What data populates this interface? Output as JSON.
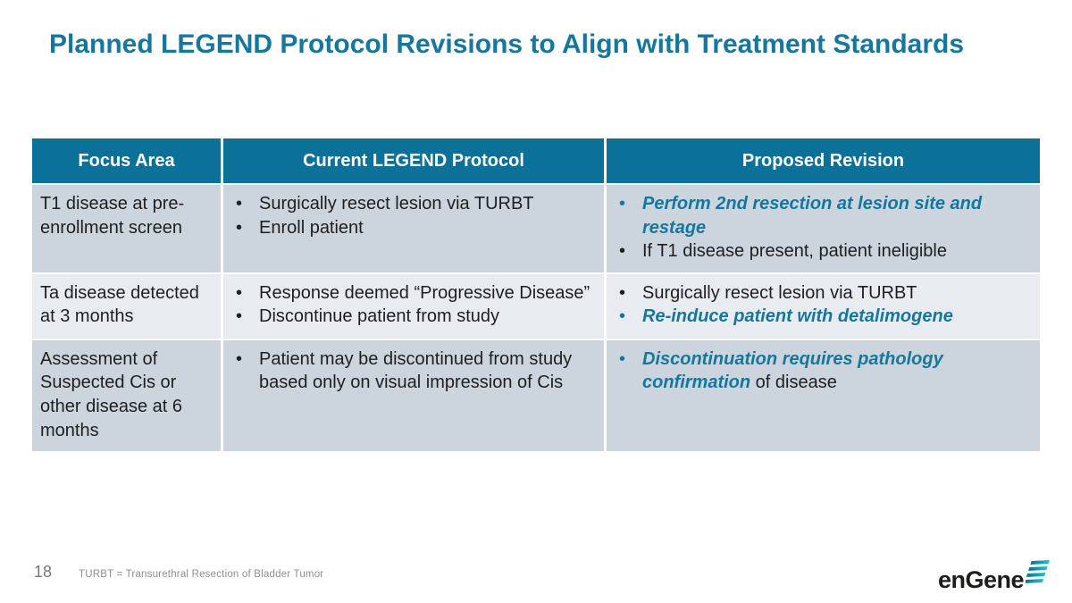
{
  "slide": {
    "title": "Planned LEGEND Protocol Revisions to Align with Treatment Standards",
    "page_number": "18",
    "footnote": "TURBT = Transurethral Resection of Bladder Tumor",
    "logo_text": "enGene"
  },
  "colors": {
    "accent_teal": "#15779e",
    "header_bg": "#0c7199",
    "row_dark": "#ccd4dd",
    "row_light": "#e8ecf1",
    "text_dark": "#1f1f1f",
    "logo_icon_teal_dark": "#0e7488",
    "logo_icon_teal_bright": "#1fc1d3"
  },
  "table": {
    "headers": [
      "Focus Area",
      "Current LEGEND Protocol",
      "Proposed Revision"
    ],
    "rows": [
      {
        "focus_area": "T1 disease at pre-enrollment screen",
        "current": [
          {
            "segments": [
              {
                "text": "Surgically resect lesion via TURBT",
                "em": false
              }
            ]
          },
          {
            "segments": [
              {
                "text": "Enroll patient",
                "em": false
              }
            ]
          }
        ],
        "proposed": [
          {
            "segments": [
              {
                "text": "Perform 2nd resection at lesion site and restage",
                "em": true
              }
            ]
          },
          {
            "segments": [
              {
                "text": "If T1 disease present, patient ineligible",
                "em": false
              }
            ]
          }
        ]
      },
      {
        "focus_area": "Ta disease detected at 3 months",
        "current": [
          {
            "segments": [
              {
                "text": "Response deemed “Progressive Disease”",
                "em": false
              }
            ]
          },
          {
            "segments": [
              {
                "text": "Discontinue patient from study",
                "em": false
              }
            ]
          }
        ],
        "proposed": [
          {
            "segments": [
              {
                "text": "Surgically resect lesion via TURBT",
                "em": false
              }
            ]
          },
          {
            "segments": [
              {
                "text": "Re-induce patient with detalimogene",
                "em": true
              }
            ]
          }
        ]
      },
      {
        "focus_area": "Assessment of Suspected Cis or other disease at 6 months",
        "current": [
          {
            "segments": [
              {
                "text": "Patient may be discontinued from study based only on visual impression of Cis",
                "em": false
              }
            ]
          }
        ],
        "proposed": [
          {
            "segments": [
              {
                "text": "Discontinuation requires pathology confirmation",
                "em": true
              },
              {
                "text": " of disease",
                "em": false
              }
            ]
          }
        ]
      }
    ]
  }
}
